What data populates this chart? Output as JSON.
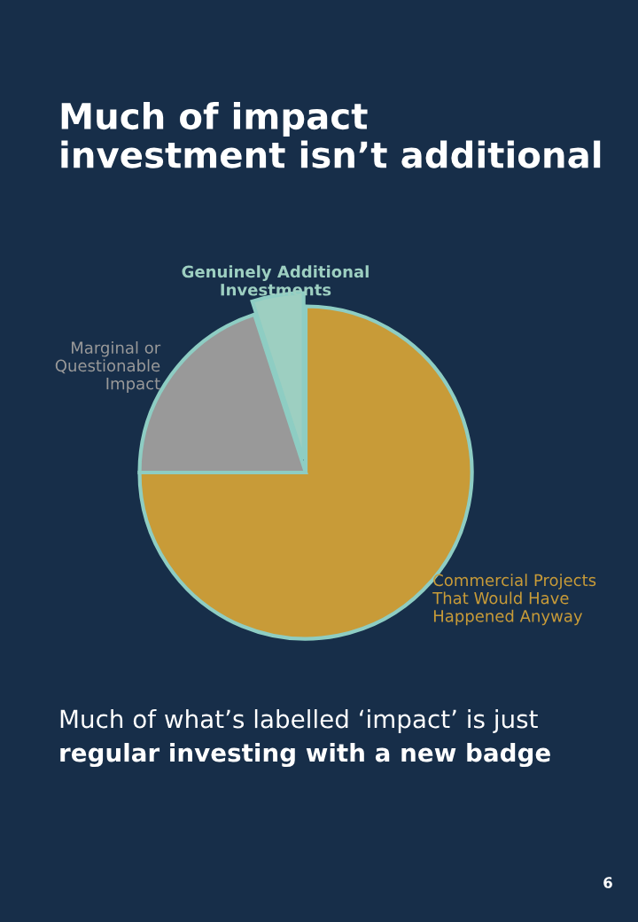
{
  "chart_data": {
    "type": "pie",
    "title": "Much of impact\ninvestment isn’t additional",
    "categories": [
      "Commercial Projects\nThat Would Have\nHappened Anyway",
      "Marginal or\nQuestionable\nImpact",
      "Genuinely Additional\nInvestments"
    ],
    "values": [
      75,
      20,
      5
    ],
    "colors": [
      "#c89b38",
      "#999999",
      "#9dcfc1"
    ],
    "annotations": [
      "Much of what’s labelled ‘impact’ is just",
      "regular investing with a new badge",
      "6"
    ]
  }
}
